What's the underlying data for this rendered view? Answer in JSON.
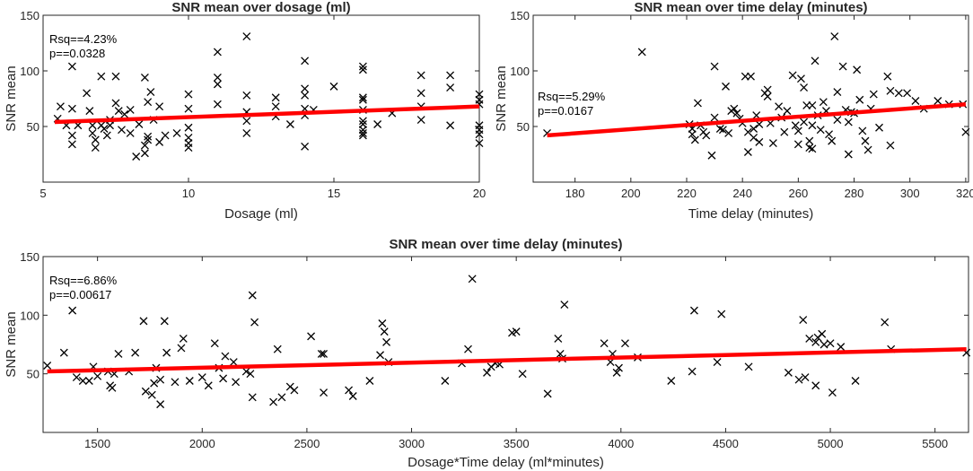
{
  "colors": {
    "fit": "#ff0000",
    "marker": "#000000",
    "axis": "#262626"
  },
  "chart_data": [
    {
      "id": "dosage",
      "type": "scatter",
      "title": "SNR mean over dosage (ml)",
      "xlabel": "Dosage (ml)",
      "ylabel": "SNR mean",
      "xlim": [
        5,
        20
      ],
      "ylim": [
        0,
        150
      ],
      "xticks": [
        5,
        10,
        15,
        20
      ],
      "yticks": [
        50,
        100,
        150
      ],
      "annotation": [
        "Rsq==4.23%",
        "p==0.0328"
      ],
      "annotation_position": "top-left",
      "fit": {
        "x": [
          5.4,
          20
        ],
        "y": [
          54,
          68
        ]
      },
      "points": [
        [
          5.5,
          57
        ],
        [
          5.6,
          68
        ],
        [
          5.8,
          51
        ],
        [
          6.0,
          104
        ],
        [
          6.0,
          66
        ],
        [
          6.0,
          42
        ],
        [
          6.0,
          34
        ],
        [
          6.2,
          51
        ],
        [
          6.5,
          80
        ],
        [
          6.6,
          64
        ],
        [
          6.7,
          51
        ],
        [
          6.7,
          44
        ],
        [
          6.8,
          38
        ],
        [
          6.8,
          31
        ],
        [
          7.0,
          95
        ],
        [
          7.0,
          51
        ],
        [
          7.1,
          48
        ],
        [
          7.2,
          42
        ],
        [
          7.3,
          51
        ],
        [
          7.3,
          56
        ],
        [
          7.5,
          95
        ],
        [
          7.5,
          71
        ],
        [
          7.6,
          64
        ],
        [
          7.7,
          47
        ],
        [
          7.8,
          61
        ],
        [
          8.0,
          65
        ],
        [
          8.0,
          44
        ],
        [
          8.2,
          23
        ],
        [
          8.3,
          52
        ],
        [
          8.5,
          94
        ],
        [
          8.6,
          72
        ],
        [
          8.7,
          81
        ],
        [
          8.6,
          41
        ],
        [
          8.6,
          38
        ],
        [
          8.5,
          33
        ],
        [
          8.5,
          26
        ],
        [
          8.8,
          56
        ],
        [
          9.0,
          68
        ],
        [
          9.0,
          36
        ],
        [
          9.2,
          42
        ],
        [
          9.6,
          44
        ],
        [
          10.0,
          79
        ],
        [
          10.0,
          49
        ],
        [
          10.0,
          40
        ],
        [
          10.0,
          35
        ],
        [
          10.0,
          31
        ],
        [
          10.0,
          66
        ],
        [
          11.0,
          117
        ],
        [
          11.0,
          94
        ],
        [
          11.0,
          88
        ],
        [
          11.0,
          70
        ],
        [
          12.0,
          131
        ],
        [
          12.0,
          78
        ],
        [
          12.0,
          63
        ],
        [
          12.0,
          55
        ],
        [
          12.0,
          44
        ],
        [
          13.0,
          76
        ],
        [
          13.0,
          68
        ],
        [
          13.0,
          59
        ],
        [
          13.5,
          52
        ],
        [
          14.0,
          109
        ],
        [
          14.0,
          84
        ],
        [
          14.0,
          78
        ],
        [
          14.0,
          66
        ],
        [
          14.0,
          60
        ],
        [
          14.0,
          32
        ],
        [
          14.3,
          65
        ],
        [
          15.0,
          86
        ],
        [
          16.0,
          104
        ],
        [
          16.0,
          101
        ],
        [
          16.0,
          76
        ],
        [
          16.0,
          74
        ],
        [
          16.0,
          65
        ],
        [
          16.0,
          55
        ],
        [
          16.0,
          52
        ],
        [
          16.0,
          47
        ],
        [
          16.0,
          44
        ],
        [
          16.0,
          42
        ],
        [
          16.5,
          52
        ],
        [
          17.0,
          62
        ],
        [
          18.0,
          96
        ],
        [
          18.0,
          80
        ],
        [
          18.0,
          68
        ],
        [
          18.0,
          56
        ],
        [
          19.0,
          96
        ],
        [
          19.0,
          85
        ],
        [
          19.0,
          51
        ],
        [
          20.0,
          79
        ],
        [
          20.0,
          74
        ],
        [
          20.0,
          70
        ],
        [
          20.0,
          51
        ],
        [
          20.0,
          47
        ],
        [
          20.0,
          43
        ],
        [
          20.0,
          35
        ]
      ]
    },
    {
      "id": "time",
      "type": "scatter",
      "title": "SNR mean over time delay (minutes)",
      "xlabel": "Time delay (minutes)",
      "ylabel": "SNR mean",
      "xlim": [
        165,
        321
      ],
      "ylim": [
        0,
        150
      ],
      "xticks": [
        180,
        200,
        220,
        240,
        260,
        280,
        300,
        320
      ],
      "yticks": [
        50,
        100,
        150
      ],
      "annotation": [
        "Rsq==5.29%",
        "p==0.0167"
      ],
      "annotation_position": "middle-left",
      "fit": {
        "x": [
          170,
          320
        ],
        "y": [
          42,
          70
        ]
      },
      "points": [
        [
          170,
          44
        ],
        [
          204,
          117
        ],
        [
          221,
          52
        ],
        [
          222,
          48
        ],
        [
          222,
          43
        ],
        [
          223,
          38
        ],
        [
          224,
          71
        ],
        [
          225,
          51
        ],
        [
          226,
          45
        ],
        [
          227,
          42
        ],
        [
          229,
          24
        ],
        [
          230,
          104
        ],
        [
          230,
          58
        ],
        [
          232,
          48
        ],
        [
          233,
          47
        ],
        [
          234,
          86
        ],
        [
          235,
          44
        ],
        [
          236,
          64
        ],
        [
          237,
          66
        ],
        [
          238,
          62
        ],
        [
          239,
          57
        ],
        [
          240,
          53
        ],
        [
          241,
          95
        ],
        [
          242,
          45
        ],
        [
          242,
          27
        ],
        [
          243,
          95
        ],
        [
          244,
          48
        ],
        [
          244,
          40
        ],
        [
          245,
          60
        ],
        [
          246,
          52
        ],
        [
          246,
          36
        ],
        [
          248,
          80
        ],
        [
          249,
          83
        ],
        [
          249,
          77
        ],
        [
          250,
          53
        ],
        [
          251,
          35
        ],
        [
          253,
          68
        ],
        [
          254,
          58
        ],
        [
          255,
          45
        ],
        [
          256,
          64
        ],
        [
          258,
          96
        ],
        [
          259,
          51
        ],
        [
          260,
          46
        ],
        [
          260,
          34
        ],
        [
          261,
          93
        ],
        [
          262,
          85
        ],
        [
          262,
          54
        ],
        [
          263,
          69
        ],
        [
          264,
          37
        ],
        [
          264,
          31
        ],
        [
          265,
          69
        ],
        [
          265,
          51
        ],
        [
          265,
          30
        ],
        [
          266,
          109
        ],
        [
          267,
          60
        ],
        [
          268,
          47
        ],
        [
          269,
          72
        ],
        [
          270,
          64
        ],
        [
          271,
          43
        ],
        [
          272,
          37
        ],
        [
          273,
          131
        ],
        [
          274,
          56
        ],
        [
          274,
          81
        ],
        [
          276,
          104
        ],
        [
          277,
          65
        ],
        [
          278,
          54
        ],
        [
          278,
          25
        ],
        [
          279,
          63
        ],
        [
          280,
          62
        ],
        [
          281,
          101
        ],
        [
          282,
          74
        ],
        [
          283,
          46
        ],
        [
          284,
          37
        ],
        [
          285,
          29
        ],
        [
          286,
          66
        ],
        [
          287,
          79
        ],
        [
          289,
          49
        ],
        [
          292,
          95
        ],
        [
          293,
          33
        ],
        [
          293,
          82
        ],
        [
          296,
          80
        ],
        [
          299,
          80
        ],
        [
          302,
          73
        ],
        [
          305,
          66
        ],
        [
          310,
          73
        ],
        [
          314,
          70
        ],
        [
          319,
          70
        ],
        [
          320,
          45
        ]
      ]
    },
    {
      "id": "product",
      "type": "scatter",
      "title": "SNR mean over time delay (minutes)",
      "xlabel": "Dosage*Time delay (ml*minutes)",
      "ylabel": "SNR mean",
      "xlim": [
        1240,
        5660
      ],
      "ylim": [
        0,
        150
      ],
      "xticks": [
        1500,
        2000,
        2500,
        3000,
        3500,
        4000,
        4500,
        5000,
        5500
      ],
      "yticks": [
        50,
        100,
        150
      ],
      "annotation": [
        "Rsq==6.86%",
        "p==0.00617"
      ],
      "annotation_position": "top-left",
      "fit": {
        "x": [
          1260,
          5650
        ],
        "y": [
          52,
          71
        ]
      },
      "points": [
        [
          1260,
          57
        ],
        [
          1340,
          68
        ],
        [
          1380,
          104
        ],
        [
          1400,
          47
        ],
        [
          1430,
          44
        ],
        [
          1460,
          44
        ],
        [
          1480,
          56
        ],
        [
          1500,
          48
        ],
        [
          1550,
          52
        ],
        [
          1560,
          40
        ],
        [
          1570,
          38
        ],
        [
          1580,
          50
        ],
        [
          1600,
          67
        ],
        [
          1650,
          52
        ],
        [
          1680,
          68
        ],
        [
          1720,
          95
        ],
        [
          1730,
          35
        ],
        [
          1760,
          32
        ],
        [
          1770,
          42
        ],
        [
          1780,
          55
        ],
        [
          1800,
          24
        ],
        [
          1800,
          45
        ],
        [
          1820,
          95
        ],
        [
          1830,
          68
        ],
        [
          1870,
          43
        ],
        [
          1900,
          72
        ],
        [
          1910,
          80
        ],
        [
          1940,
          44
        ],
        [
          2000,
          47
        ],
        [
          2030,
          40
        ],
        [
          2060,
          76
        ],
        [
          2080,
          55
        ],
        [
          2100,
          46
        ],
        [
          2110,
          65
        ],
        [
          2150,
          60
        ],
        [
          2160,
          43
        ],
        [
          2210,
          52
        ],
        [
          2230,
          50
        ],
        [
          2240,
          30
        ],
        [
          2240,
          117
        ],
        [
          2250,
          94
        ],
        [
          2340,
          26
        ],
        [
          2360,
          71
        ],
        [
          2380,
          30
        ],
        [
          2420,
          39
        ],
        [
          2440,
          36
        ],
        [
          2520,
          82
        ],
        [
          2570,
          67
        ],
        [
          2580,
          67
        ],
        [
          2580,
          34
        ],
        [
          2700,
          36
        ],
        [
          2720,
          31
        ],
        [
          2800,
          44
        ],
        [
          2850,
          66
        ],
        [
          2860,
          93
        ],
        [
          2870,
          86
        ],
        [
          2880,
          77
        ],
        [
          2890,
          60
        ],
        [
          3160,
          44
        ],
        [
          3240,
          59
        ],
        [
          3270,
          71
        ],
        [
          3290,
          131
        ],
        [
          3360,
          51
        ],
        [
          3380,
          56
        ],
        [
          3400,
          59
        ],
        [
          3420,
          58
        ],
        [
          3480,
          85
        ],
        [
          3500,
          86
        ],
        [
          3530,
          50
        ],
        [
          3650,
          33
        ],
        [
          3700,
          80
        ],
        [
          3710,
          67
        ],
        [
          3720,
          63
        ],
        [
          3730,
          109
        ],
        [
          3920,
          76
        ],
        [
          3950,
          60
        ],
        [
          3960,
          67
        ],
        [
          3980,
          51
        ],
        [
          3990,
          55
        ],
        [
          4020,
          76
        ],
        [
          4080,
          64
        ],
        [
          4240,
          44
        ],
        [
          4340,
          52
        ],
        [
          4350,
          104
        ],
        [
          4460,
          60
        ],
        [
          4480,
          101
        ],
        [
          4610,
          56
        ],
        [
          4800,
          51
        ],
        [
          4850,
          45
        ],
        [
          4870,
          96
        ],
        [
          4880,
          47
        ],
        [
          4900,
          80
        ],
        [
          4930,
          77
        ],
        [
          4930,
          40
        ],
        [
          4940,
          81
        ],
        [
          4960,
          84
        ],
        [
          4970,
          75
        ],
        [
          5000,
          76
        ],
        [
          5010,
          34
        ],
        [
          5050,
          73
        ],
        [
          5120,
          44
        ],
        [
          5260,
          94
        ],
        [
          5290,
          71
        ],
        [
          5650,
          68
        ]
      ]
    }
  ]
}
